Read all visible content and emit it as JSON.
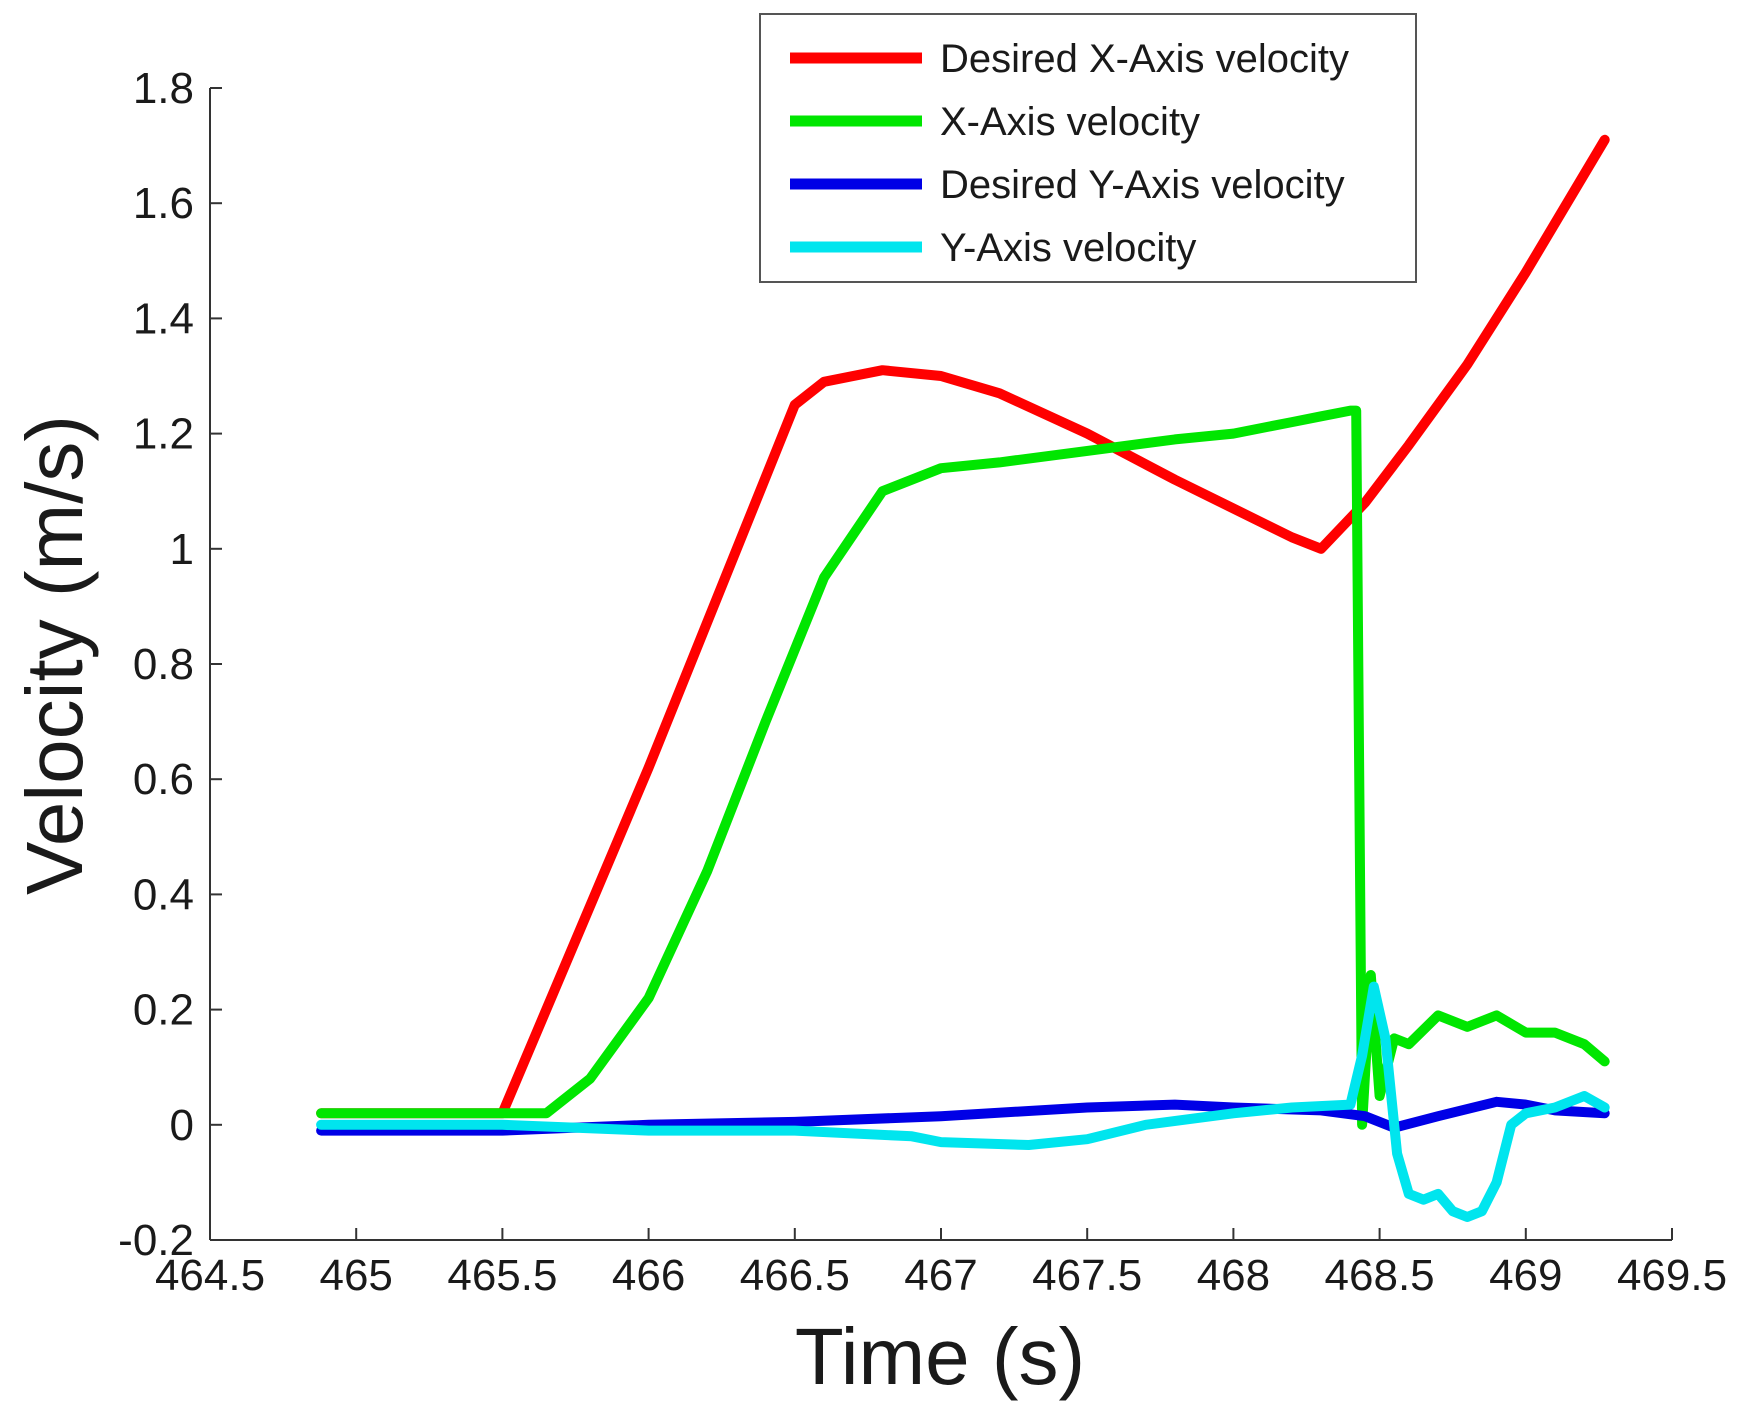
{
  "chart_data": {
    "type": "line",
    "title": "",
    "xlabel": "Time (s)",
    "ylabel": "Velocity  (m/s)",
    "xlim": [
      464.5,
      469.5
    ],
    "ylim": [
      -0.2,
      1.8
    ],
    "xticks": [
      "464.5",
      "465",
      "465.5",
      "466",
      "466.5",
      "467",
      "467.5",
      "468",
      "468.5",
      "469",
      "469.5"
    ],
    "yticks": [
      "-0.2",
      "0",
      "0.2",
      "0.4",
      "0.6",
      "0.8",
      "1",
      "1.2",
      "1.4",
      "1.6",
      "1.8"
    ],
    "grid": false,
    "legend_position": "top-right",
    "series": [
      {
        "name": "Desired X-Axis velocity",
        "color": "#ff0000",
        "x": [
          464.88,
          465.5,
          466.0,
          466.5,
          466.6,
          466.8,
          467.0,
          467.2,
          467.5,
          467.8,
          468.0,
          468.2,
          468.3,
          468.45,
          468.6,
          468.8,
          469.0,
          469.27
        ],
        "y": [
          0.02,
          0.02,
          0.62,
          1.25,
          1.29,
          1.31,
          1.3,
          1.27,
          1.2,
          1.12,
          1.07,
          1.02,
          1.0,
          1.08,
          1.18,
          1.32,
          1.48,
          1.71
        ]
      },
      {
        "name": "X-Axis velocity",
        "color": "#00e600",
        "x": [
          464.88,
          465.0,
          465.3,
          465.5,
          465.65,
          465.8,
          466.0,
          466.2,
          466.4,
          466.6,
          466.8,
          467.0,
          467.2,
          467.5,
          467.8,
          468.0,
          468.2,
          468.3,
          468.4,
          468.42,
          468.44,
          468.47,
          468.5,
          468.55,
          468.6,
          468.7,
          468.8,
          468.9,
          469.0,
          469.1,
          469.2,
          469.27
        ],
        "y": [
          0.02,
          0.02,
          0.02,
          0.02,
          0.02,
          0.08,
          0.22,
          0.44,
          0.7,
          0.95,
          1.1,
          1.14,
          1.15,
          1.17,
          1.19,
          1.2,
          1.22,
          1.23,
          1.24,
          1.24,
          0.0,
          0.26,
          0.05,
          0.15,
          0.14,
          0.19,
          0.17,
          0.19,
          0.16,
          0.16,
          0.14,
          0.11
        ]
      },
      {
        "name": "Desired Y-Axis velocity",
        "color": "#0000e6",
        "x": [
          464.88,
          465.5,
          466.0,
          466.5,
          467.0,
          467.5,
          467.8,
          468.0,
          468.3,
          468.45,
          468.55,
          468.7,
          468.9,
          469.0,
          469.1,
          469.27
        ],
        "y": [
          -0.01,
          -0.01,
          0.0,
          0.005,
          0.015,
          0.03,
          0.035,
          0.03,
          0.025,
          0.015,
          -0.005,
          0.015,
          0.04,
          0.035,
          0.025,
          0.02
        ]
      },
      {
        "name": "Y-Axis velocity",
        "color": "#00e5ee",
        "x": [
          464.88,
          465.2,
          465.5,
          466.0,
          466.5,
          466.9,
          467.0,
          467.3,
          467.5,
          467.7,
          468.0,
          468.2,
          468.4,
          468.44,
          468.48,
          468.52,
          468.56,
          468.6,
          468.65,
          468.7,
          468.75,
          468.8,
          468.85,
          468.9,
          468.95,
          469.0,
          469.1,
          469.2,
          469.27
        ],
        "y": [
          0.0,
          0.0,
          0.0,
          -0.01,
          -0.01,
          -0.02,
          -0.03,
          -0.035,
          -0.025,
          0.0,
          0.02,
          0.03,
          0.035,
          0.12,
          0.24,
          0.15,
          -0.05,
          -0.12,
          -0.13,
          -0.12,
          -0.15,
          -0.16,
          -0.15,
          -0.1,
          0.0,
          0.02,
          0.03,
          0.05,
          0.03
        ]
      }
    ]
  }
}
